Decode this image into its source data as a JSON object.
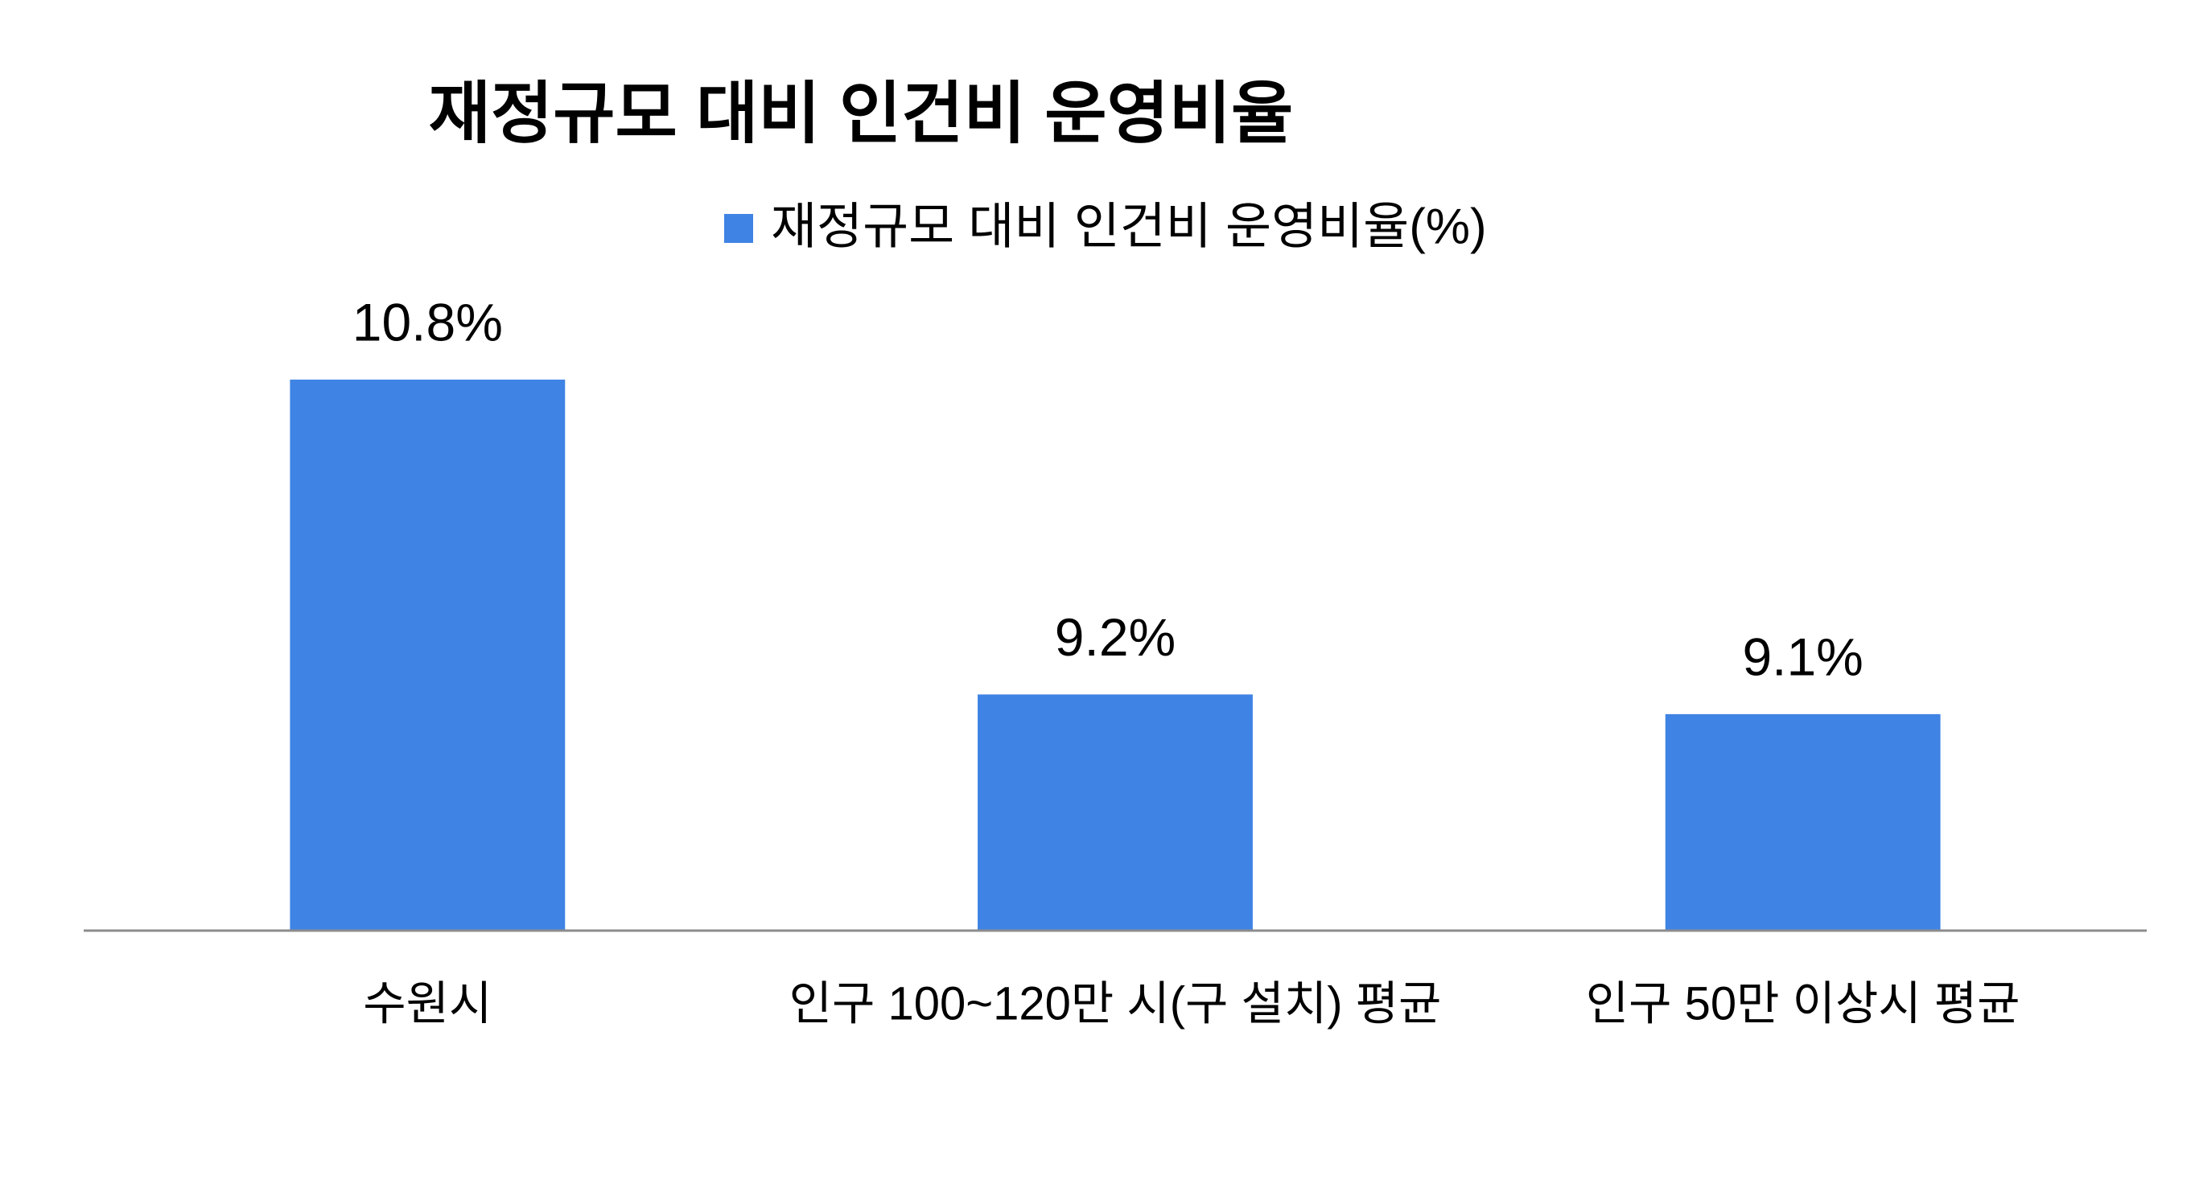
{
  "chart_data": {
    "type": "bar",
    "title": "재정규모 대비 인건비 운영비율",
    "categories": [
      "수원시",
      "인구 100~120만 시(구 설치) 평균",
      "인구 50만 이상시 평균"
    ],
    "series": [
      {
        "name": "재정규모 대비 인건비 운영비율(%)",
        "color": "#3f83e4",
        "values": [
          10.8,
          9.2,
          9.1
        ],
        "value_labels": [
          "10.8%",
          "9.2%",
          "9.1%"
        ]
      }
    ],
    "ylim": [
      8,
      11
    ],
    "legend": "top"
  }
}
